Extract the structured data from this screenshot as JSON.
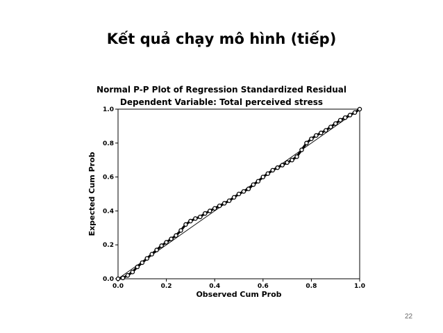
{
  "slide": {
    "title": "Kết quả chạy mô hình (tiếp)",
    "page_number": "22"
  },
  "chart_data": {
    "type": "scatter",
    "title": "Normal P-P Plot of Regression Standardized Residual",
    "subtitle": "Dependent Variable: Total perceived stress",
    "xlabel": "Observed Cum Prob",
    "ylabel": "Expected Cum Prob",
    "xlim": [
      0.0,
      1.0
    ],
    "ylim": [
      0.0,
      1.0
    ],
    "xticks": [
      "0.0",
      "0.2",
      "0.4",
      "0.6",
      "0.8",
      "1.0"
    ],
    "yticks": [
      "0.0",
      "0.2",
      "0.4",
      "0.6",
      "0.8",
      "1.0"
    ],
    "grid": false,
    "reference_line": {
      "from": [
        0,
        0
      ],
      "to": [
        1,
        1
      ]
    },
    "points": [
      [
        0.0,
        0.0
      ],
      [
        0.02,
        0.005
      ],
      [
        0.04,
        0.02
      ],
      [
        0.06,
        0.04
      ],
      [
        0.08,
        0.07
      ],
      [
        0.1,
        0.095
      ],
      [
        0.12,
        0.12
      ],
      [
        0.14,
        0.145
      ],
      [
        0.16,
        0.17
      ],
      [
        0.18,
        0.195
      ],
      [
        0.2,
        0.215
      ],
      [
        0.22,
        0.235
      ],
      [
        0.24,
        0.255
      ],
      [
        0.26,
        0.285
      ],
      [
        0.28,
        0.32
      ],
      [
        0.3,
        0.34
      ],
      [
        0.32,
        0.355
      ],
      [
        0.34,
        0.365
      ],
      [
        0.36,
        0.385
      ],
      [
        0.38,
        0.4
      ],
      [
        0.4,
        0.415
      ],
      [
        0.42,
        0.43
      ],
      [
        0.44,
        0.445
      ],
      [
        0.46,
        0.46
      ],
      [
        0.48,
        0.48
      ],
      [
        0.5,
        0.5
      ],
      [
        0.52,
        0.515
      ],
      [
        0.54,
        0.53
      ],
      [
        0.56,
        0.555
      ],
      [
        0.58,
        0.575
      ],
      [
        0.6,
        0.6
      ],
      [
        0.62,
        0.62
      ],
      [
        0.64,
        0.64
      ],
      [
        0.66,
        0.655
      ],
      [
        0.68,
        0.67
      ],
      [
        0.7,
        0.685
      ],
      [
        0.72,
        0.7
      ],
      [
        0.74,
        0.72
      ],
      [
        0.76,
        0.76
      ],
      [
        0.78,
        0.8
      ],
      [
        0.8,
        0.825
      ],
      [
        0.82,
        0.845
      ],
      [
        0.84,
        0.86
      ],
      [
        0.86,
        0.875
      ],
      [
        0.88,
        0.895
      ],
      [
        0.9,
        0.915
      ],
      [
        0.92,
        0.935
      ],
      [
        0.94,
        0.95
      ],
      [
        0.96,
        0.965
      ],
      [
        0.98,
        0.98
      ],
      [
        1.0,
        1.0
      ]
    ]
  }
}
